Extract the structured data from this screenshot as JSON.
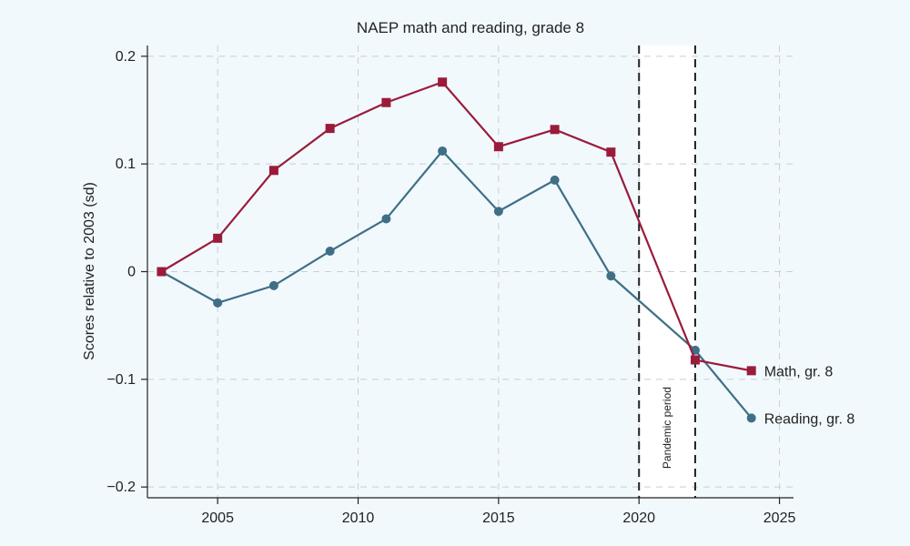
{
  "chart_data": {
    "type": "line",
    "title": "NAEP math and reading, grade 8",
    "xlabel": "",
    "ylabel": "Scores relative to 2003 (sd)",
    "xlim": [
      2002.5,
      2025.5
    ],
    "ylim": [
      -0.21,
      0.21
    ],
    "x_ticks": [
      2005,
      2010,
      2015,
      2020,
      2025
    ],
    "y_ticks": [
      0.2,
      0.1,
      0,
      -0.1,
      -0.2
    ],
    "y_tick_labels": [
      "0.2",
      "0.1",
      "0",
      "−0.1",
      "−0.2"
    ],
    "grid": true,
    "shaded_region": {
      "x_start": 2020,
      "x_end": 2022,
      "label": "Pandemic period",
      "color": "#ffffff"
    },
    "series": [
      {
        "name": "Math, gr. 8",
        "color": "#9b1b3a",
        "marker": "square",
        "x": [
          2003,
          2005,
          2007,
          2009,
          2011,
          2013,
          2015,
          2017,
          2019,
          2022,
          2024
        ],
        "values": [
          0.0,
          0.031,
          0.094,
          0.133,
          0.157,
          0.176,
          0.116,
          0.132,
          0.111,
          -0.082,
          -0.092
        ]
      },
      {
        "name": "Reading, gr. 8",
        "color": "#3f6f86",
        "marker": "circle",
        "x": [
          2003,
          2005,
          2007,
          2009,
          2011,
          2013,
          2015,
          2017,
          2019,
          2022,
          2024
        ],
        "values": [
          0.0,
          -0.029,
          -0.013,
          0.019,
          0.049,
          0.112,
          0.056,
          0.085,
          -0.004,
          -0.073,
          -0.136
        ]
      }
    ]
  }
}
